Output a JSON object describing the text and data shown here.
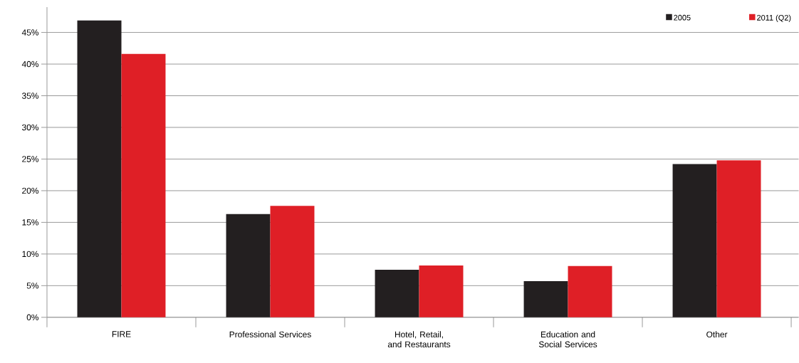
{
  "chart_data": {
    "type": "bar",
    "categories": [
      "FIRE",
      "Professional Services",
      "Hotel, Retail, and Restaurants",
      "Education and Social Services",
      "Other"
    ],
    "series": [
      {
        "name": "2005",
        "color": "#231f20",
        "values": [
          46.9,
          16.3,
          7.5,
          5.7,
          24.2
        ]
      },
      {
        "name": "2011 (Q2)",
        "color": "#df1f26",
        "values": [
          41.6,
          17.6,
          8.2,
          8.1,
          24.8
        ]
      }
    ],
    "ylim": [
      0,
      49
    ],
    "yticks": [
      {
        "value": 0,
        "label": "0%"
      },
      {
        "value": 5,
        "label": "5%"
      },
      {
        "value": 10,
        "label": "10%"
      },
      {
        "value": 15,
        "label": "15%"
      },
      {
        "value": 20,
        "label": "20%"
      },
      {
        "value": 25,
        "label": "25%"
      },
      {
        "value": 30,
        "label": "30%"
      },
      {
        "value": 35,
        "label": "35%"
      },
      {
        "value": 40,
        "label": "40%"
      },
      {
        "value": 45,
        "label": "45%"
      }
    ],
    "grid": "y",
    "legend": "top right"
  }
}
